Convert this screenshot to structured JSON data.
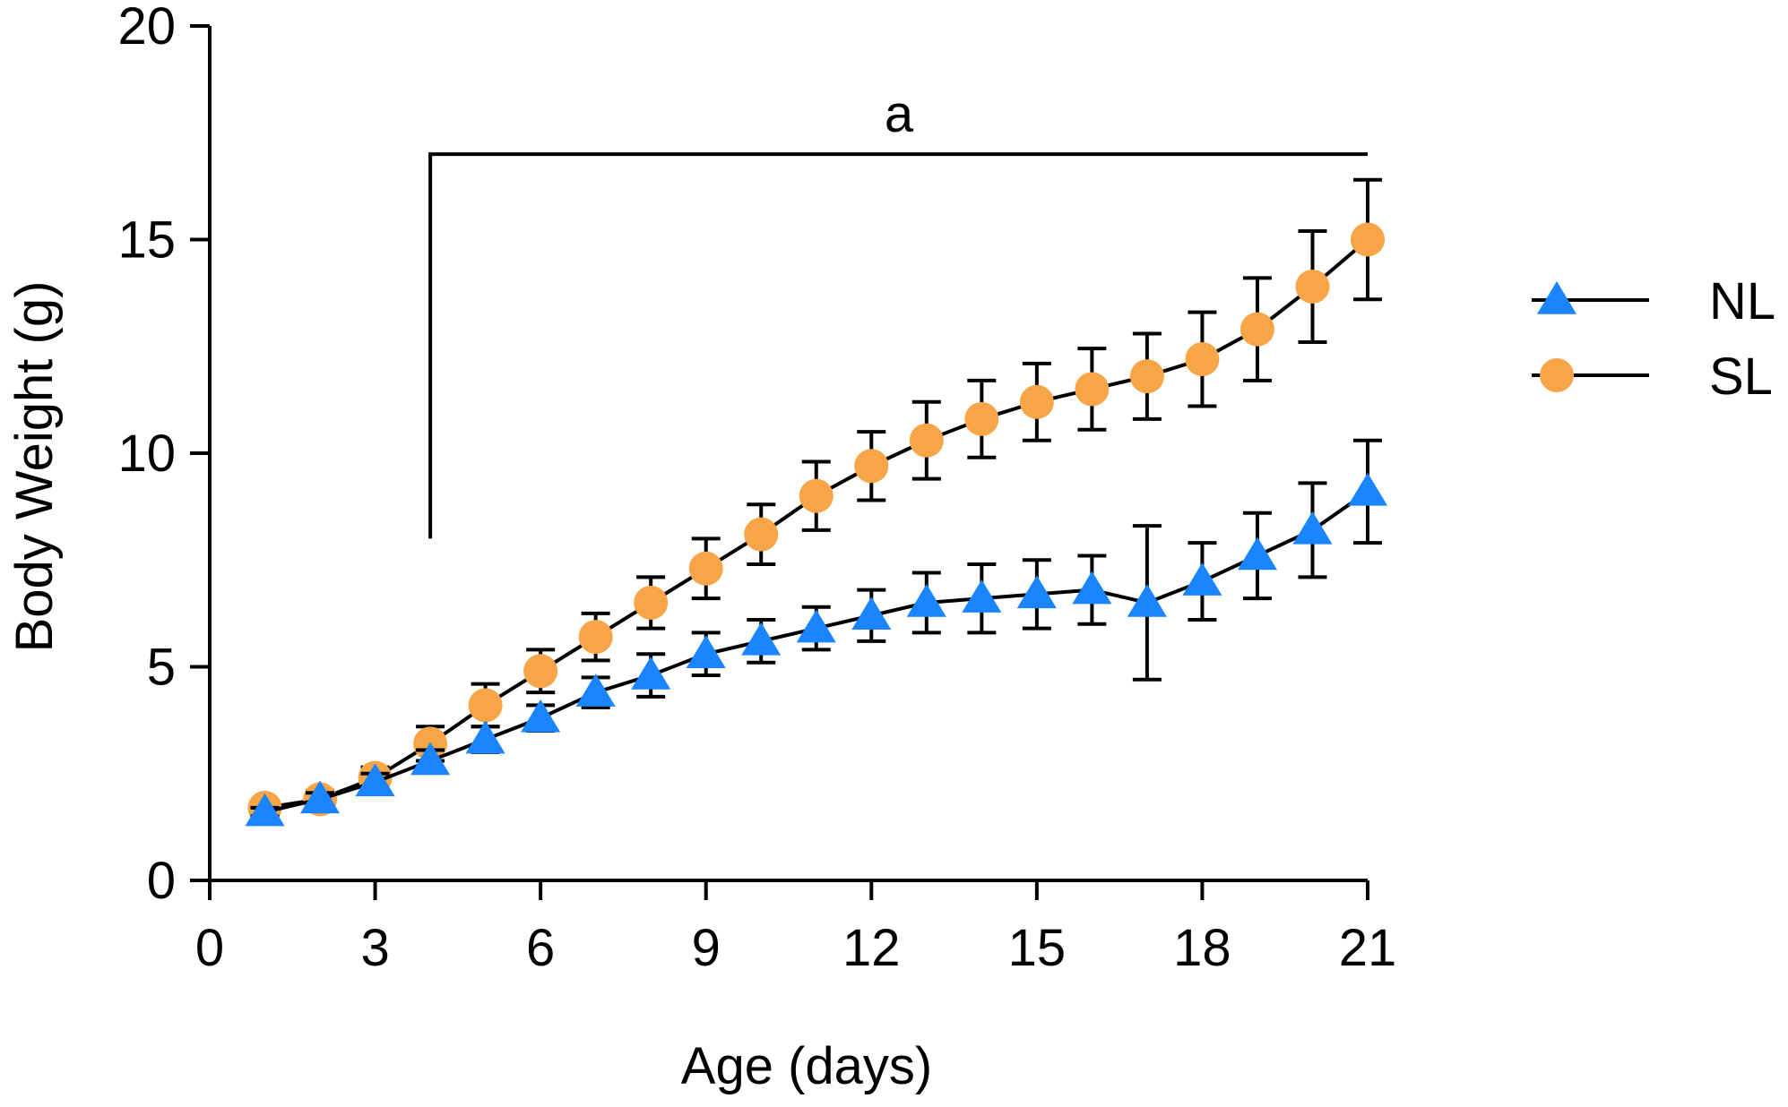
{
  "chart_data": {
    "type": "line",
    "title": "",
    "xlabel": "Age (days)",
    "ylabel": "Body Weight (g)",
    "xlim": [
      0,
      21
    ],
    "ylim": [
      0,
      20
    ],
    "x_ticks": [
      0,
      3,
      6,
      9,
      12,
      15,
      18,
      21
    ],
    "y_ticks": [
      0,
      5,
      10,
      15,
      20
    ],
    "grid": false,
    "legend_position": "right",
    "x": [
      1,
      2,
      3,
      4,
      5,
      6,
      7,
      8,
      9,
      10,
      11,
      12,
      13,
      14,
      15,
      16,
      17,
      18,
      19,
      20,
      21
    ],
    "series": [
      {
        "name": "NL",
        "marker": "triangle",
        "color": "#1a85ff",
        "values": [
          1.6,
          1.9,
          2.3,
          2.8,
          3.3,
          3.8,
          4.4,
          4.8,
          5.3,
          5.6,
          5.9,
          6.2,
          6.5,
          6.6,
          6.7,
          6.8,
          6.5,
          7.0,
          7.6,
          8.2,
          9.1
        ],
        "errors": [
          0.1,
          0.15,
          0.2,
          0.25,
          0.3,
          0.3,
          0.35,
          0.5,
          0.5,
          0.5,
          0.5,
          0.6,
          0.7,
          0.8,
          0.8,
          0.8,
          1.8,
          0.9,
          1.0,
          1.1,
          1.2
        ]
      },
      {
        "name": "SL",
        "marker": "circle",
        "color": "#f7a546",
        "values": [
          1.7,
          1.9,
          2.4,
          3.2,
          4.1,
          4.9,
          5.7,
          6.5,
          7.3,
          8.1,
          9.0,
          9.7,
          10.3,
          10.8,
          11.2,
          11.5,
          11.8,
          12.2,
          12.9,
          13.9,
          15.0
        ],
        "errors": [
          0.15,
          0.2,
          0.25,
          0.4,
          0.5,
          0.5,
          0.55,
          0.6,
          0.7,
          0.7,
          0.8,
          0.8,
          0.9,
          0.9,
          0.9,
          0.95,
          1.0,
          1.1,
          1.2,
          1.3,
          1.4
        ]
      }
    ],
    "annotations": [
      {
        "text": "a",
        "x_start": 4,
        "x_end": 21,
        "y_bracket": 17,
        "y_drop": 8
      }
    ]
  }
}
